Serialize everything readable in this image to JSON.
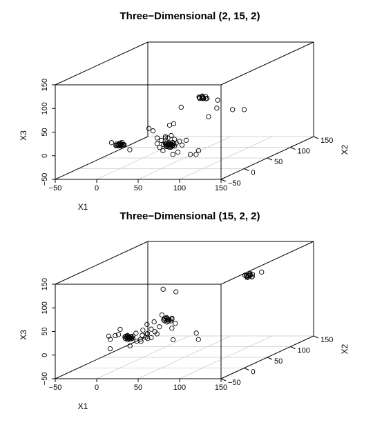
{
  "chart_data": [
    {
      "type": "scatter",
      "title": "Three−Dimensional (2, 15, 2)",
      "xlabel": "X1",
      "ylabel": "X2",
      "zlabel": "X3",
      "xlim": [
        -50,
        150
      ],
      "ylim": [
        -50,
        150
      ],
      "zlim": [
        -50,
        150
      ],
      "x_ticks": [
        "−50",
        "0",
        "50",
        "100",
        "150"
      ],
      "y_ticks": [
        "−50",
        "0",
        "50",
        "100",
        "150"
      ],
      "z_ticks": [
        "−50",
        "0",
        "50",
        "100",
        "150"
      ],
      "grid": "on floor plane",
      "marker": "open circle",
      "series": [
        {
          "points": [
            [
              0,
              0,
              0
            ],
            [
              -3,
              2,
              0
            ],
            [
              2,
              -2,
              2
            ],
            [
              -2,
              -1,
              -1
            ],
            [
              1,
              2,
              1
            ],
            [
              3,
              0,
              -2
            ],
            [
              -1,
              1,
              3
            ],
            [
              0,
              -3,
              1
            ],
            [
              2,
              3,
              -1
            ],
            [
              -4,
              0,
              2
            ],
            [
              1,
              -1,
              4
            ],
            [
              4,
              1,
              0
            ],
            [
              -2,
              3,
              -3
            ],
            [
              0,
              2,
              -2
            ],
            [
              3,
              -3,
              3
            ],
            [
              -1,
              -2,
              2
            ],
            [
              5,
              0,
              1
            ],
            [
              -5,
              1,
              -1
            ],
            [
              2,
              1,
              5
            ],
            [
              -3,
              -3,
              0
            ],
            [
              -10,
              0,
              5
            ],
            [
              12,
              0,
              -10
            ],
            [
              60,
              0,
              0
            ],
            [
              58,
              2,
              2
            ],
            [
              62,
              -2,
              -2
            ],
            [
              57,
              -1,
              3
            ],
            [
              63,
              1,
              -1
            ],
            [
              59,
              3,
              1
            ],
            [
              61,
              -3,
              2
            ],
            [
              56,
              0,
              -3
            ],
            [
              64,
              2,
              3
            ],
            [
              60,
              -1,
              -4
            ],
            [
              55,
              1,
              1
            ],
            [
              65,
              -2,
              0
            ],
            [
              58,
              -3,
              -2
            ],
            [
              62,
              3,
              4
            ],
            [
              57,
              2,
              -1
            ],
            [
              63,
              -1,
              1
            ],
            [
              59,
              0,
              5
            ],
            [
              61,
              1,
              -5
            ],
            [
              54,
              -2,
              2
            ],
            [
              66,
              0,
              -2
            ],
            [
              60,
              4,
              0
            ],
            [
              58,
              -4,
              1
            ],
            [
              62,
              2,
              -3
            ],
            [
              56,
              -2,
              4
            ],
            [
              50,
              0,
              10
            ],
            [
              70,
              0,
              -15
            ],
            [
              62,
              0,
              20
            ],
            [
              48,
              0,
              -5
            ],
            [
              72,
              0,
              8
            ],
            [
              58,
              0,
              15
            ],
            [
              66,
              0,
              12
            ],
            [
              52,
              0,
              -12
            ],
            [
              68,
              0,
              4
            ],
            [
              55,
              0,
              18
            ],
            [
              75,
              0,
              0
            ],
            [
              45,
              0,
              3
            ],
            [
              80,
              0,
              10
            ],
            [
              64,
              0,
              -20
            ],
            [
              74,
              0,
              80
            ],
            [
              60,
              0,
              42
            ],
            [
              65,
              0,
              45
            ],
            [
              40,
              0,
              30
            ],
            [
              35,
              0,
              35
            ],
            [
              55,
              0,
              15
            ],
            [
              45,
              0,
              15
            ],
            [
              95,
              0,
              -12
            ],
            [
              92,
              0,
              -20
            ],
            [
              85,
              0,
              -20
            ],
            [
              100,
              0,
              100
            ],
            [
              98,
              2,
              98
            ],
            [
              102,
              -2,
              101
            ],
            [
              97,
              -1,
              99
            ],
            [
              103,
              1,
              102
            ],
            [
              99,
              3,
              97
            ],
            [
              101,
              -3,
              103
            ],
            [
              96,
              0,
              100
            ],
            [
              104,
              2,
              98
            ],
            [
              100,
              -1,
              104
            ],
            [
              95,
              1,
              101
            ],
            [
              105,
              -2,
              99
            ],
            [
              118,
              0,
              95
            ],
            [
              136,
              0,
              75
            ],
            [
              150,
              0,
              75
            ],
            [
              117,
              0,
              78
            ],
            [
              107,
              0,
              60
            ]
          ]
        }
      ]
    },
    {
      "type": "scatter",
      "title": "Three−Dimensional (15, 2, 2)",
      "xlabel": "X1",
      "ylabel": "X2",
      "zlabel": "X3",
      "xlim": [
        -50,
        150
      ],
      "ylim": [
        -50,
        150
      ],
      "zlim": [
        -50,
        150
      ],
      "x_ticks": [
        "−50",
        "0",
        "50",
        "100",
        "150"
      ],
      "y_ticks": [
        "−50",
        "0",
        "50",
        "100",
        "150"
      ],
      "z_ticks": [
        "−50",
        "0",
        "50",
        "100",
        "150"
      ],
      "grid": "on floor plane",
      "marker": "open circle",
      "series": [
        {
          "points": [
            [
              5,
              10,
              10
            ],
            [
              3,
              12,
              12
            ],
            [
              7,
              8,
              8
            ],
            [
              2,
              9,
              13
            ],
            [
              8,
              11,
              7
            ],
            [
              4,
              13,
              9
            ],
            [
              6,
              7,
              11
            ],
            [
              1,
              10,
              8
            ],
            [
              9,
              12,
              12
            ],
            [
              5,
              8,
              6
            ],
            [
              3,
              11,
              14
            ],
            [
              7,
              9,
              10
            ],
            [
              10,
              10,
              9
            ],
            [
              0,
              11,
              11
            ],
            [
              6,
              12,
              7
            ],
            [
              4,
              8,
              13
            ],
            [
              8,
              10,
              12
            ],
            [
              2,
              12,
              8
            ],
            [
              5,
              7,
              10
            ],
            [
              9,
              9,
              11
            ],
            [
              -15,
              6,
              8
            ],
            [
              -10,
              8,
              15
            ],
            [
              18,
              12,
              5
            ],
            [
              22,
              9,
              15
            ],
            [
              25,
              11,
              10
            ],
            [
              12,
              15,
              0
            ],
            [
              -5,
              6,
              18
            ],
            [
              15,
              8,
              20
            ],
            [
              20,
              10,
              2
            ],
            [
              -20,
              12,
              12
            ],
            [
              -8,
              15,
              25
            ],
            [
              10,
              4,
              -5
            ],
            [
              28,
              10,
              8
            ],
            [
              55,
              5,
              50
            ],
            [
              53,
              7,
              52
            ],
            [
              57,
              3,
              48
            ],
            [
              52,
              4,
              53
            ],
            [
              58,
              6,
              47
            ],
            [
              54,
              8,
              49
            ],
            [
              56,
              2,
              51
            ],
            [
              51,
              5,
              48
            ],
            [
              59,
              7,
              52
            ],
            [
              55,
              3,
              46
            ],
            [
              53,
              6,
              54
            ],
            [
              57,
              4,
              50
            ],
            [
              50,
              5,
              50
            ],
            [
              60,
              5,
              51
            ],
            [
              45,
              5,
              35
            ],
            [
              40,
              4,
              25
            ],
            [
              38,
              6,
              45
            ],
            [
              35,
              5,
              30
            ],
            [
              48,
              5,
              60
            ],
            [
              30,
              5,
              40
            ],
            [
              42,
              5,
              20
            ],
            [
              60,
              5,
              32
            ],
            [
              64,
              5,
              42
            ],
            [
              30,
              5,
              20
            ],
            [
              25,
              5,
              28
            ],
            [
              66,
              3,
              110
            ],
            [
              50,
              4,
              115
            ],
            [
              30,
              6,
              20
            ],
            [
              35,
              5,
              12
            ],
            [
              90,
              4,
              22
            ],
            [
              92,
              5,
              8
            ],
            [
              -15,
              6,
              -12
            ],
            [
              62,
              4,
              8
            ],
            [
              100,
              100,
              100
            ],
            [
              98,
              101,
              98
            ],
            [
              102,
              99,
              101
            ],
            [
              97,
              100,
              99
            ],
            [
              103,
              102,
              102
            ],
            [
              99,
              98,
              97
            ],
            [
              101,
              100,
              103
            ],
            [
              96,
              101,
              100
            ],
            [
              104,
              99,
              98
            ],
            [
              100,
              102,
              104
            ],
            [
              95,
              100,
              101
            ],
            [
              105,
              98,
              99
            ],
            [
              118,
              95,
              110
            ]
          ]
        }
      ]
    }
  ]
}
